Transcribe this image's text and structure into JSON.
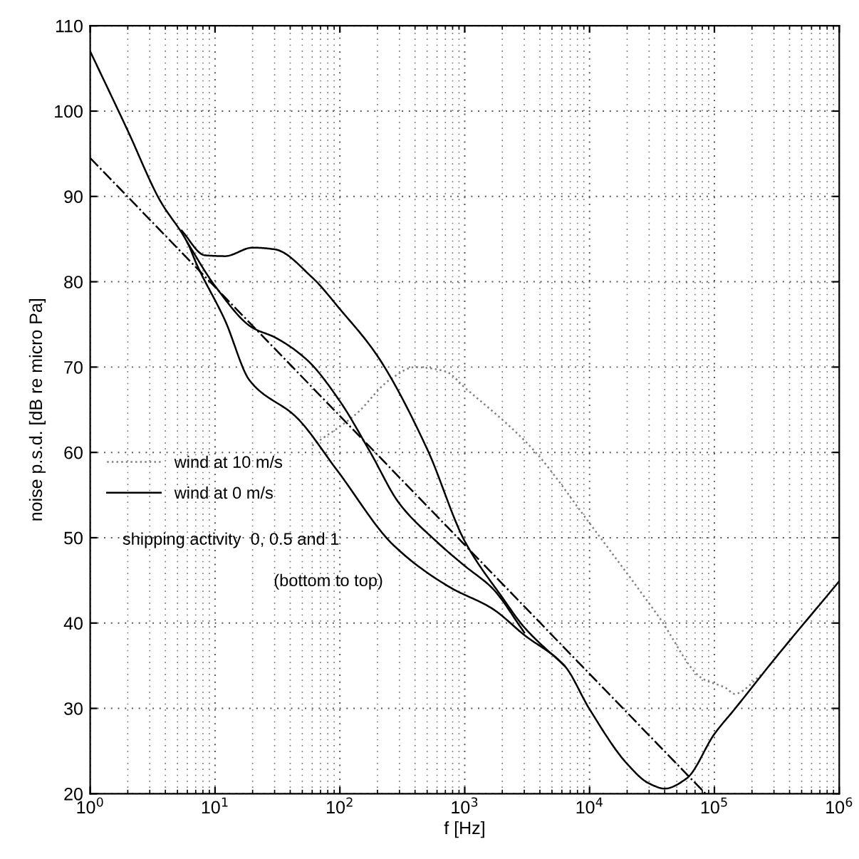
{
  "chart_data": {
    "type": "line",
    "xlabel": "f [Hz]",
    "ylabel": "noise p.s.d. [dB re micro Pa]",
    "log": "x",
    "xlim": [
      1,
      1000000
    ],
    "ylim": [
      20,
      110
    ],
    "xticks": [
      {
        "value": 1,
        "label": "10$^{0}$"
      },
      {
        "value": 10,
        "label": "10$^{1}$"
      },
      {
        "value": 100,
        "label": "10$^{2}$"
      },
      {
        "value": 1000,
        "label": "10$^{3}$"
      },
      {
        "value": 10000,
        "label": "10$^{4}$"
      },
      {
        "value": 100000,
        "label": "10$^{5}$"
      },
      {
        "value": 1000000,
        "label": "10$^{6}$"
      }
    ],
    "yticks": [
      20,
      30,
      40,
      50,
      60,
      70,
      80,
      90,
      100,
      110
    ],
    "grid": true,
    "legend": "left",
    "line_style": "solid",
    "marker": "none",
    "annotations": [
      "shipping activity  0, 0.5 and 1",
      "(bottom to top)"
    ],
    "series": [
      {
        "name": "wind at 10 m/s",
        "color": "#808080",
        "line_style": "dotted",
        "x": [
          60,
          135,
          250,
          400,
          700,
          1000,
          3500,
          10000,
          36000,
          80000,
          123000,
          145000,
          240000
        ],
        "values": [
          60.8,
          64.5,
          68.5,
          70,
          69.5,
          67.6,
          60.4,
          51.7,
          40.7,
          33.5,
          32.4,
          31.7,
          34.0
        ]
      },
      {
        "name": "wind at 0 m/s",
        "color": "#000000",
        "x": [
          1,
          2,
          3.6,
          6,
          7.2,
          12,
          19,
          45,
          95,
          270,
          760,
          1660,
          3000,
          6300,
          10000,
          20000,
          30000,
          40000,
          60000,
          100000,
          145000,
          300000,
          1000000
        ],
        "values": [
          107,
          97.7,
          89.6,
          84.6,
          81.9,
          75.5,
          68.4,
          64.1,
          57.9,
          49.1,
          44.2,
          41.7,
          38.6,
          35,
          29.9,
          23.5,
          21.2,
          20.6,
          21.8,
          27,
          29.9,
          35.7,
          44.9
        ]
      },
      {
        "color": "#000000",
        "x": [
          6,
          10,
          20,
          30,
          54,
          100,
          174,
          300,
          600,
          1000,
          1660,
          3000
        ],
        "values": [
          84.6,
          79.5,
          74.6,
          73.5,
          70.9,
          66,
          60.1,
          54,
          49.5,
          46.7,
          44.1,
          38.9
        ]
      },
      {
        "color": "#000000",
        "x": [
          5.4,
          8.3,
          12,
          20,
          30,
          60,
          100,
          200,
          500,
          1000,
          2000,
          3000,
          6300
        ],
        "values": [
          86,
          83.1,
          83,
          84,
          83.8,
          80.5,
          76.8,
          71.3,
          60.4,
          49.6,
          43,
          39.5,
          35
        ]
      },
      {
        "color": "#000000",
        "line_style": "dashdot",
        "x": [
          1,
          85000
        ],
        "values": [
          94.5,
          20
        ]
      }
    ]
  }
}
